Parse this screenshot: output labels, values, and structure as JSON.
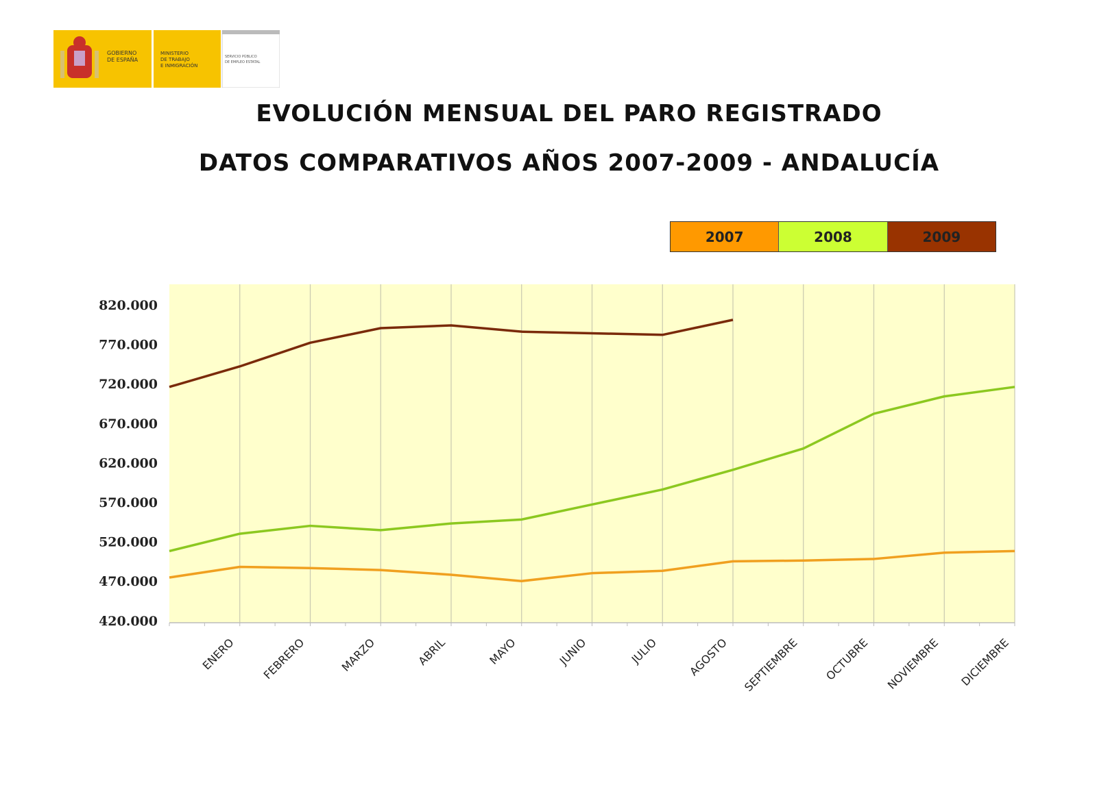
{
  "logo": {
    "gobierno": "GOBIERNO DE ESPAÑA",
    "ministerio": "MINISTERIO DE TRABAJO E INMIGRACIÓN",
    "servicio": "SERVICIO PÚBLICO DE EMPLEO ESTATAL"
  },
  "chart_data": {
    "type": "line",
    "title": "EVOLUCIÓN MENSUAL DEL PARO REGISTRADO",
    "subtitle": "DATOS COMPARATIVOS AÑOS 2007-2009 - ANDALUCÍA",
    "xlabel": "",
    "ylabel": "",
    "categories": [
      "",
      "ENERO",
      "FEBRERO",
      "MARZO",
      "ABRIL",
      "MAYO",
      "JUNIO",
      "JULIO",
      "AGOSTO",
      "SEPTIEMBRE",
      "OCTUBRE",
      "NOVIEMBRE",
      "DICIEMBRE"
    ],
    "ylim": [
      420000,
      850000
    ],
    "yticks": [
      420000,
      470000,
      520000,
      570000,
      620000,
      670000,
      720000,
      770000,
      820000
    ],
    "ytick_labels": [
      "420.000",
      "470.000",
      "520.000",
      "570.000",
      "620.000",
      "670.000",
      "720.000",
      "770.000",
      "820.000"
    ],
    "grid": "vertical",
    "background": "#ffffcc",
    "legend_position": "top-right",
    "series": [
      {
        "name": "2007",
        "color": "#f0a020",
        "legend_color": "#ff9900",
        "values": [
          474500,
          488000,
          486500,
          484000,
          478000,
          470000,
          480000,
          483000,
          495000,
          496000,
          498000,
          506000,
          508000
        ]
      },
      {
        "name": "2008",
        "color": "#8cc820",
        "legend_color": "#ccff33",
        "values": [
          508000,
          530000,
          540000,
          534500,
          543000,
          548000,
          567000,
          586000,
          611000,
          638000,
          682000,
          704000,
          716000
        ]
      },
      {
        "name": "2009",
        "color": "#7a2a0a",
        "legend_color": "#993300",
        "values": [
          716000,
          742000,
          772000,
          790500,
          794000,
          786000,
          784000,
          782000,
          801000,
          null,
          null,
          null,
          null
        ]
      }
    ]
  }
}
